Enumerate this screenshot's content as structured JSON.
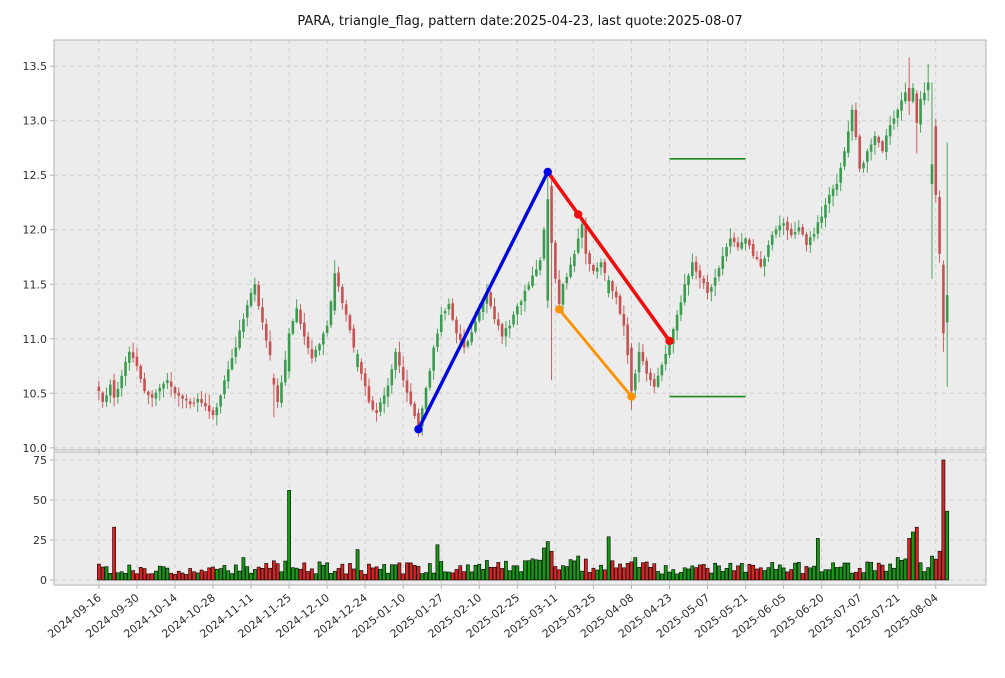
{
  "header": {
    "title": "PARA, triangle_flag, pattern date:2025-04-23, last quote:2025-08-07"
  },
  "chart_data": {
    "type": "candlestick",
    "symbol": "PARA",
    "pattern": "triangle_flag",
    "pattern_date": "2025-04-23",
    "last_quote_date": "2025-08-07",
    "panels": [
      "price",
      "volume"
    ],
    "grid": "dashed",
    "legend": "none",
    "x_tick_labels": [
      "2024-09-16",
      "2024-09-30",
      "2024-10-14",
      "2024-10-28",
      "2024-11-11",
      "2024-11-25",
      "2024-12-10",
      "2024-12-24",
      "2025-01-10",
      "2025-01-27",
      "2025-02-10",
      "2025-02-25",
      "2025-03-11",
      "2025-03-25",
      "2025-04-08",
      "2025-04-23",
      "2025-05-07",
      "2025-05-21",
      "2025-06-05",
      "2025-06-20",
      "2025-07-07",
      "2025-07-21",
      "2025-08-04"
    ],
    "days_per_tick": 10,
    "total_days": 224,
    "xlim_days": [
      -11.8,
      233.2
    ],
    "price_axis": {
      "tick_labels": [
        "10.0",
        "10.5",
        "11.0",
        "11.5",
        "12.0",
        "12.5",
        "13.0",
        "13.5"
      ],
      "ticks": [
        10.0,
        10.5,
        11.0,
        11.5,
        12.0,
        12.5,
        13.0,
        13.5
      ],
      "ylim": [
        9.98,
        13.74
      ]
    },
    "volume_axis": {
      "tick_labels": [
        "0",
        "25",
        "50",
        "75"
      ],
      "ticks": [
        0,
        25,
        50,
        75
      ],
      "ylim": [
        0,
        80
      ]
    },
    "close_anchors": [
      [
        0,
        10.52
      ],
      [
        1,
        10.42
      ],
      [
        3,
        10.58
      ],
      [
        4,
        10.46
      ],
      [
        6,
        10.66
      ],
      [
        8,
        10.88
      ],
      [
        10,
        10.75
      ],
      [
        12,
        10.52
      ],
      [
        14,
        10.46
      ],
      [
        16,
        10.55
      ],
      [
        18,
        10.62
      ],
      [
        20,
        10.5
      ],
      [
        22,
        10.45
      ],
      [
        24,
        10.4
      ],
      [
        26,
        10.45
      ],
      [
        28,
        10.38
      ],
      [
        30,
        10.3
      ],
      [
        32,
        10.48
      ],
      [
        34,
        10.72
      ],
      [
        36,
        10.92
      ],
      [
        38,
        11.18
      ],
      [
        40,
        11.42
      ],
      [
        41,
        11.5
      ],
      [
        43,
        11.15
      ],
      [
        45,
        10.85
      ],
      [
        46,
        10.58
      ],
      [
        47,
        10.42
      ],
      [
        48,
        10.6
      ],
      [
        50,
        11.05
      ],
      [
        52,
        11.28
      ],
      [
        54,
        11.02
      ],
      [
        56,
        10.82
      ],
      [
        58,
        10.95
      ],
      [
        60,
        11.12
      ],
      [
        62,
        11.6
      ],
      [
        63,
        11.48
      ],
      [
        65,
        11.22
      ],
      [
        67,
        10.92
      ],
      [
        69,
        10.68
      ],
      [
        71,
        10.42
      ],
      [
        73,
        10.32
      ],
      [
        75,
        10.48
      ],
      [
        77,
        10.72
      ],
      [
        78,
        10.88
      ],
      [
        80,
        10.62
      ],
      [
        82,
        10.4
      ],
      [
        84,
        10.2
      ],
      [
        86,
        10.55
      ],
      [
        88,
        10.92
      ],
      [
        90,
        11.22
      ],
      [
        92,
        11.32
      ],
      [
        94,
        11.05
      ],
      [
        96,
        10.92
      ],
      [
        98,
        11.06
      ],
      [
        100,
        11.25
      ],
      [
        102,
        11.42
      ],
      [
        104,
        11.18
      ],
      [
        106,
        11.02
      ],
      [
        108,
        11.12
      ],
      [
        110,
        11.3
      ],
      [
        112,
        11.44
      ],
      [
        114,
        11.58
      ],
      [
        116,
        11.72
      ],
      [
        117,
        12.0
      ],
      [
        118,
        12.28
      ],
      [
        119,
        11.88
      ],
      [
        120,
        11.55
      ],
      [
        121,
        11.32
      ],
      [
        122,
        11.5
      ],
      [
        124,
        11.68
      ],
      [
        126,
        11.92
      ],
      [
        127,
        12.05
      ],
      [
        128,
        11.78
      ],
      [
        130,
        11.62
      ],
      [
        132,
        11.7
      ],
      [
        134,
        11.54
      ],
      [
        136,
        11.38
      ],
      [
        138,
        11.12
      ],
      [
        139,
        10.85
      ],
      [
        140,
        10.52
      ],
      [
        141,
        10.68
      ],
      [
        142,
        10.88
      ],
      [
        144,
        10.68
      ],
      [
        146,
        10.56
      ],
      [
        148,
        10.76
      ],
      [
        150,
        10.95
      ],
      [
        152,
        11.22
      ],
      [
        154,
        11.5
      ],
      [
        156,
        11.7
      ],
      [
        158,
        11.56
      ],
      [
        160,
        11.42
      ],
      [
        162,
        11.56
      ],
      [
        164,
        11.76
      ],
      [
        166,
        11.92
      ],
      [
        168,
        11.84
      ],
      [
        170,
        11.92
      ],
      [
        172,
        11.76
      ],
      [
        174,
        11.66
      ],
      [
        176,
        11.86
      ],
      [
        178,
        12.0
      ],
      [
        180,
        12.06
      ],
      [
        182,
        11.95
      ],
      [
        184,
        12.02
      ],
      [
        186,
        11.86
      ],
      [
        188,
        11.96
      ],
      [
        190,
        12.12
      ],
      [
        192,
        12.32
      ],
      [
        194,
        12.42
      ],
      [
        196,
        12.72
      ],
      [
        198,
        13.1
      ],
      [
        199,
        12.85
      ],
      [
        200,
        12.56
      ],
      [
        202,
        12.72
      ],
      [
        204,
        12.86
      ],
      [
        206,
        12.72
      ],
      [
        208,
        12.96
      ],
      [
        210,
        13.1
      ],
      [
        212,
        13.26
      ],
      [
        213,
        13.18
      ],
      [
        214,
        13.3
      ],
      [
        215,
        12.98
      ],
      [
        216,
        13.2
      ],
      [
        218,
        13.35
      ],
      [
        219,
        12.6
      ],
      [
        220,
        12.32
      ],
      [
        221,
        11.78
      ],
      [
        222,
        11.05
      ],
      [
        223,
        11.4
      ]
    ],
    "special_candles": {
      "4": [
        10.62,
        10.68,
        10.38,
        10.46
      ],
      "46": [
        10.64,
        10.68,
        10.28,
        10.58
      ],
      "50": [
        10.7,
        11.1,
        10.64,
        11.05
      ],
      "62": [
        11.26,
        11.72,
        11.22,
        11.6
      ],
      "68": [
        10.74,
        10.9,
        10.7,
        10.86
      ],
      "84": [
        10.32,
        10.36,
        10.1,
        10.2
      ],
      "118": [
        11.35,
        12.53,
        11.28,
        12.28
      ],
      "119": [
        12.4,
        12.45,
        10.62,
        11.88
      ],
      "134": [
        11.42,
        11.58,
        11.38,
        11.54
      ],
      "140": [
        10.92,
        10.96,
        10.35,
        10.52
      ],
      "213": [
        13.3,
        13.58,
        13.05,
        13.18
      ],
      "215": [
        13.25,
        13.28,
        12.7,
        12.98
      ],
      "218": [
        13.28,
        13.52,
        13.18,
        13.35
      ],
      "219": [
        12.42,
        13.35,
        11.55,
        12.6
      ],
      "220": [
        12.95,
        13.02,
        12.25,
        12.32
      ],
      "221": [
        12.3,
        12.36,
        11.7,
        11.78
      ],
      "222": [
        11.68,
        11.72,
        10.88,
        11.05
      ],
      "223": [
        11.15,
        12.8,
        10.56,
        11.4
      ]
    },
    "volume_anchors": [
      [
        0,
        7
      ],
      [
        30,
        6
      ],
      [
        50,
        8
      ],
      [
        70,
        7
      ],
      [
        90,
        8
      ],
      [
        110,
        9
      ],
      [
        120,
        9
      ],
      [
        135,
        9
      ],
      [
        150,
        7
      ],
      [
        170,
        7
      ],
      [
        185,
        8
      ],
      [
        200,
        8
      ],
      [
        212,
        10
      ],
      [
        223,
        10
      ]
    ],
    "volume_spikes": {
      "4": 33,
      "38": 14,
      "46": 12,
      "50": 56,
      "68": 19,
      "89": 22,
      "117": 20,
      "118": 24,
      "119": 18,
      "126": 15,
      "134": 27,
      "141": 14,
      "189": 26,
      "213": 26,
      "214": 30,
      "215": 33,
      "220": 13,
      "221": 18,
      "222": 75,
      "223": 43
    },
    "overlays": {
      "blue_trendline": {
        "from": [
          84,
          10.17
        ],
        "to": [
          118,
          12.53
        ],
        "color": "#0008e0"
      },
      "red_trendline": {
        "from": [
          118,
          12.53
        ],
        "to": [
          150,
          10.98
        ],
        "mid_marker": [
          126,
          12.14
        ],
        "color": "#ee0e0e"
      },
      "orange_trendline": {
        "from": [
          121,
          11.27
        ],
        "to": [
          140,
          10.47
        ],
        "color": "#ff9100"
      },
      "resistance_line": {
        "price": 12.65,
        "from_day": 150,
        "to_day": 170,
        "color": "#178a17"
      },
      "support_line": {
        "price": 10.47,
        "from_day": 150,
        "to_day": 170,
        "color": "#178a17"
      }
    },
    "colors": {
      "up": "#3b9c50",
      "down": "#c85252",
      "vol_up": "#169a16",
      "vol_down": "#dd2222",
      "plot_bg": "#ececec",
      "grid": "#cfcfcf",
      "border": "#b3b3b3",
      "text": "#2f2f2f"
    }
  }
}
